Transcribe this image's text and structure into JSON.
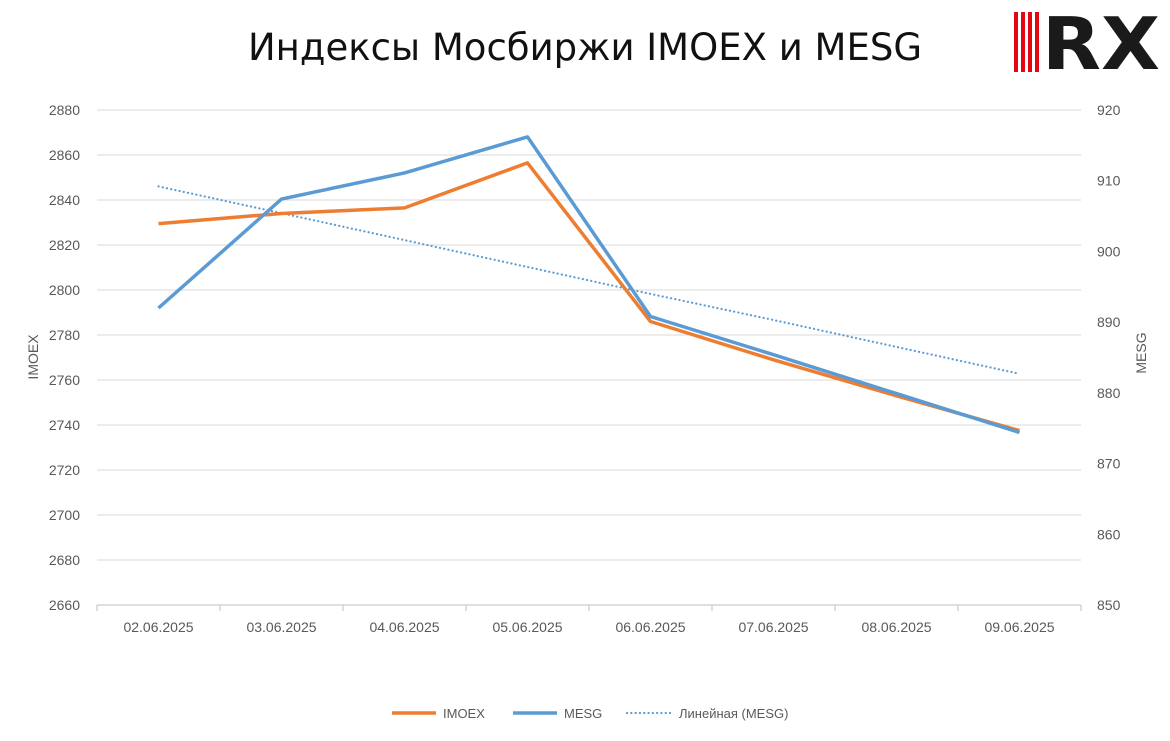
{
  "chart_data": {
    "type": "line",
    "title": "Индексы Мосбиржи IMOEX и MESG",
    "categories": [
      "02.06.2025",
      "03.06.2025",
      "04.06.2025",
      "05.06.2025",
      "06.06.2025",
      "07.06.2025",
      "08.06.2025",
      "09.06.2025"
    ],
    "y_left": {
      "label": "IMOEX",
      "range": [
        2660,
        2880
      ],
      "ticks": [
        "2660",
        "2680",
        "2700",
        "2720",
        "2740",
        "2760",
        "2780",
        "2800",
        "2820",
        "2840",
        "2860",
        "2880"
      ]
    },
    "y_right": {
      "label": "MESG",
      "range": [
        850,
        920
      ],
      "ticks": [
        "850",
        "860",
        "870",
        "880",
        "890",
        "900",
        "910",
        "920"
      ]
    },
    "series": [
      {
        "name": "IMOEX",
        "axis": "left",
        "color": "#ED7D31",
        "style": "solid",
        "values": [
          2829.5,
          2834,
          2836.5,
          2856.5,
          2786,
          2769,
          2753,
          2737.5
        ]
      },
      {
        "name": "MESG",
        "axis": "right",
        "color": "#5B9BD5",
        "style": "solid",
        "values": [
          892.0,
          907.4,
          911.1,
          916.2,
          890.8,
          885.4,
          879.9,
          874.4
        ]
      },
      {
        "name": "Линейная (MESG)",
        "axis": "right",
        "color": "#5B9BD5",
        "style": "dotted",
        "trendline_of": "MESG",
        "values": [
          909.2,
          905.4,
          901.6,
          897.8,
          894.0,
          890.3,
          886.5,
          882.7
        ]
      }
    ],
    "grid": true,
    "legend_position": "bottom"
  },
  "logo": {
    "text": "RX",
    "colors": {
      "stripes": "#E30613",
      "letters": "#1A1A1A",
      "letter_accent": "#E30613"
    }
  }
}
